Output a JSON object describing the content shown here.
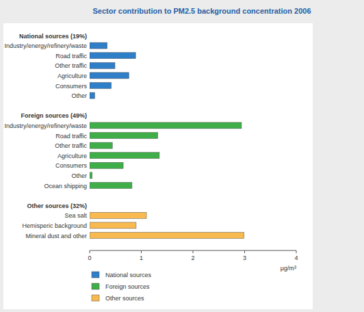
{
  "chart_data": {
    "type": "bar",
    "orientation": "horizontal",
    "title": "Sector contribution to PM2.5 background concentration 2006",
    "x_label": "µg/m³",
    "xlim": [
      0,
      4
    ],
    "xticks": [
      0,
      1,
      2,
      3,
      4
    ],
    "grid": false,
    "legend": "bottom",
    "series": [
      {
        "name": "National sources",
        "heading": "National sources (19%)",
        "color": "#2f7ec8",
        "categories": [
          "Industry/energy/refinery/waste",
          "Road traffic",
          "Other traffic",
          "Agriculture",
          "Consumers",
          "Other"
        ],
        "values": [
          0.34,
          0.89,
          0.49,
          0.76,
          0.42,
          0.1
        ]
      },
      {
        "name": "Foreign sources",
        "heading": "Foreign sources (49%)",
        "color": "#3fae49",
        "categories": [
          "Industry/energy/refinery/waste",
          "Road traffic",
          "Other traffic",
          "Agriculture",
          "Consumers",
          "Other",
          "Ocean shipping"
        ],
        "values": [
          2.94,
          1.32,
          0.44,
          1.35,
          0.65,
          0.05,
          0.82
        ]
      },
      {
        "name": "Other sources",
        "heading": "Other sources (32%)",
        "color": "#f8b94f",
        "categories": [
          "Sea salt",
          "Hemisperic background",
          "Mineral dust and other"
        ],
        "values": [
          1.1,
          0.9,
          2.99
        ]
      }
    ]
  }
}
